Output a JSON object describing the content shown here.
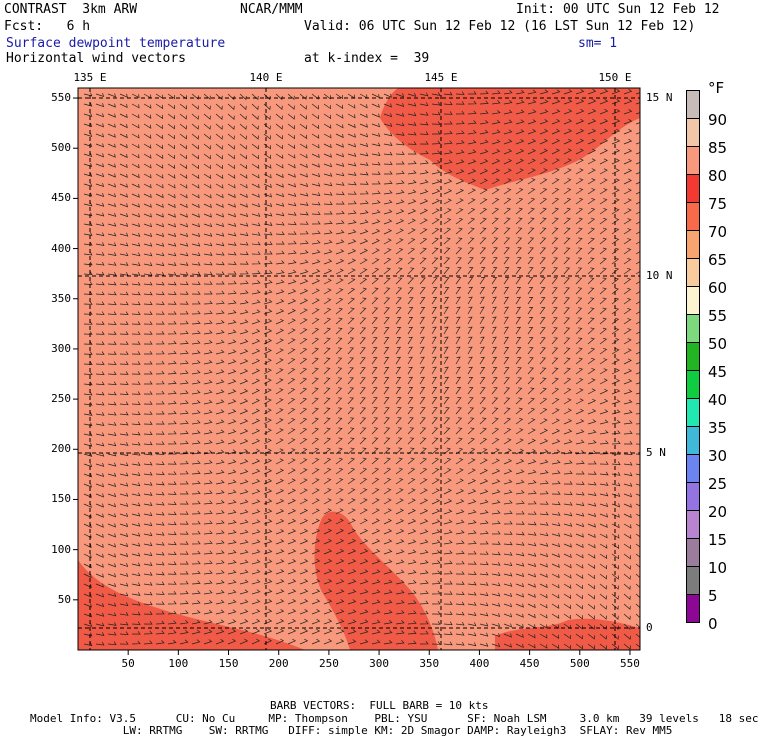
{
  "header": {
    "model": "CONTRAST  3km ARW",
    "center": "NCAR/MMM",
    "init": "Init: 00 UTC Sun 12 Feb 12",
    "fcst": "Fcst:   6 h",
    "valid": "Valid: 06 UTC Sun 12 Feb 12 (16 LST Sun 12 Feb 12)",
    "field": "Surface dewpoint temperature",
    "sm": "sm= 1",
    "vectors": "Horizontal wind vectors",
    "kindex": "at k-index =  39"
  },
  "map": {
    "lon_labels": [
      "135 E",
      "140 E",
      "145 E",
      "150 E"
    ],
    "lat_labels": [
      "15 N",
      "10 N",
      "5 N",
      "0"
    ],
    "y_ticks": [
      50,
      100,
      150,
      200,
      250,
      300,
      350,
      400,
      450,
      500,
      550
    ],
    "x_ticks": [
      50,
      100,
      150,
      200,
      250,
      300,
      350,
      400,
      450,
      500,
      550
    ],
    "grid_range": [
      0,
      560
    ]
  },
  "colorbar": {
    "unit": "°F",
    "levels": [
      {
        "label": "90",
        "color": "#c8bcb8"
      },
      {
        "label": "85",
        "color": "#f2c6a8"
      },
      {
        "label": "80",
        "color": "#f8987c"
      },
      {
        "label": "75",
        "color": "#f23a32"
      },
      {
        "label": "70",
        "color": "#f86a4a"
      },
      {
        "label": "65",
        "color": "#f8a470"
      },
      {
        "label": "60",
        "color": "#f8cc9c"
      },
      {
        "label": "55",
        "color": "#fcf4d0"
      },
      {
        "label": "50",
        "color": "#7ed87e"
      },
      {
        "label": "45",
        "color": "#22b422"
      },
      {
        "label": "40",
        "color": "#10cc40"
      },
      {
        "label": "35",
        "color": "#20e8b0"
      },
      {
        "label": "30",
        "color": "#40b8d8"
      },
      {
        "label": "25",
        "color": "#6c84f0"
      },
      {
        "label": "20",
        "color": "#9474e0"
      },
      {
        "label": "15",
        "color": "#b884d0"
      },
      {
        "label": "10",
        "color": "#9c7c9c"
      },
      {
        "label": "5",
        "color": "#7c7c7c"
      },
      {
        "label": "0",
        "color": "#8c0894"
      }
    ]
  },
  "footer": {
    "barb": "BARB VECTORS:  FULL BARB = 10 kts",
    "line1": "Model Info: V3.5      CU: No Cu     MP: Thompson    PBL: YSU      SF: Noah LSM     3.0 km   39 levels   18 sec",
    "line2": "              LW: RRTMG    SW: RRTMG   DIFF: simple KM: 2D Smagor DAMP: Rayleigh3  SFLAY: Rev MM5"
  }
}
